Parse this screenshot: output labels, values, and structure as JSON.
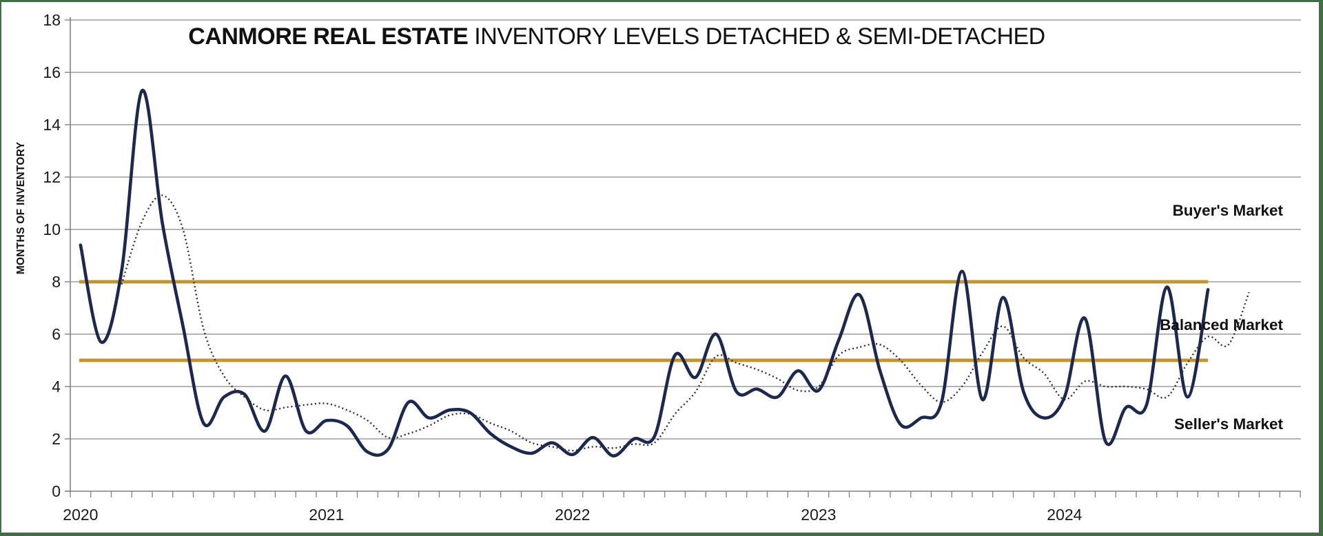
{
  "page": {
    "background": "#ffffff",
    "border_color": "#426e46"
  },
  "chart_data": {
    "type": "line",
    "title": {
      "bold": "CANMORE REAL ESTATE",
      "regular": "INVENTORY LEVELS DETACHED & SEMI-DETACHED"
    },
    "ylabel": "MONTHS OF INVENTORY",
    "xlabel": "",
    "ylim": [
      0,
      18
    ],
    "y_ticks": [
      0,
      2,
      4,
      6,
      8,
      10,
      12,
      14,
      16,
      18
    ],
    "grid": true,
    "legend_position": "none",
    "x_axis": {
      "unit": "month",
      "first_month": "Jan 2020",
      "months_total": 60,
      "year_labels": [
        {
          "label": "2020",
          "month_index": 0
        },
        {
          "label": "2021",
          "month_index": 12
        },
        {
          "label": "2022",
          "month_index": 24
        },
        {
          "label": "2023",
          "month_index": 36
        },
        {
          "label": "2024",
          "month_index": 48
        }
      ]
    },
    "reference_lines": [
      {
        "name": "buyers-balanced-threshold",
        "value": 8,
        "color": "#bf9630",
        "span_months": [
          0,
          55
        ]
      },
      {
        "name": "balanced-sellers-threshold",
        "value": 5,
        "color": "#bf9630",
        "span_months": [
          0,
          55
        ]
      }
    ],
    "annotations": [
      {
        "text": "Buyer's Market",
        "y_value": 10.7
      },
      {
        "text": "Balanced Market",
        "y_value": 6.35
      },
      {
        "text": "Seller's Market",
        "y_value": 2.55
      }
    ],
    "series": [
      {
        "name": "solid_navy_line",
        "line_style": "solid",
        "color": "#1b2950",
        "start_month_index": 0,
        "first_point": "Jan 2020",
        "last_point": "Aug 2024",
        "values": [
          9.4,
          5.7,
          8.4,
          15.3,
          10.2,
          6.3,
          2.6,
          3.6,
          3.7,
          2.3,
          4.4,
          2.3,
          2.7,
          2.5,
          1.5,
          1.6,
          3.4,
          2.8,
          3.1,
          3.0,
          2.2,
          1.7,
          1.45,
          1.85,
          1.4,
          2.05,
          1.35,
          2.0,
          2.1,
          5.2,
          4.35,
          6.0,
          3.8,
          3.9,
          3.6,
          4.6,
          3.85,
          5.8,
          7.5,
          4.6,
          2.55,
          2.8,
          3.4,
          8.4,
          3.5,
          7.4,
          3.8,
          2.8,
          3.6,
          6.6,
          1.9,
          3.2,
          3.3,
          7.8,
          3.6,
          7.7
        ]
      },
      {
        "name": "dotted_gray_line",
        "line_style": "dotted",
        "color": "#2f2f2f",
        "start_month_index": 2,
        "first_point": "Mar 2020",
        "last_point": "Oct 2024",
        "values": [
          7.9,
          10.3,
          11.3,
          10.0,
          6.2,
          4.4,
          3.6,
          3.1,
          3.2,
          3.3,
          3.35,
          3.1,
          2.7,
          2.05,
          2.2,
          2.5,
          2.9,
          2.95,
          2.6,
          2.3,
          1.85,
          1.7,
          1.55,
          1.7,
          1.65,
          1.8,
          1.85,
          2.95,
          3.8,
          5.15,
          4.9,
          4.65,
          4.3,
          3.85,
          4.0,
          5.2,
          5.5,
          5.6,
          5.0,
          4.05,
          3.4,
          4.0,
          5.3,
          6.3,
          5.1,
          4.5,
          3.5,
          4.2,
          4.0,
          4.0,
          3.9,
          3.6,
          4.9,
          5.9,
          5.6,
          7.6
        ]
      }
    ],
    "style": {
      "gridline_color": "#9c9c9c",
      "axis_color": "#7f7f7f",
      "solid_line_width": 4.6,
      "dotted_line_width": 2.4,
      "reference_line_width": 5
    }
  }
}
